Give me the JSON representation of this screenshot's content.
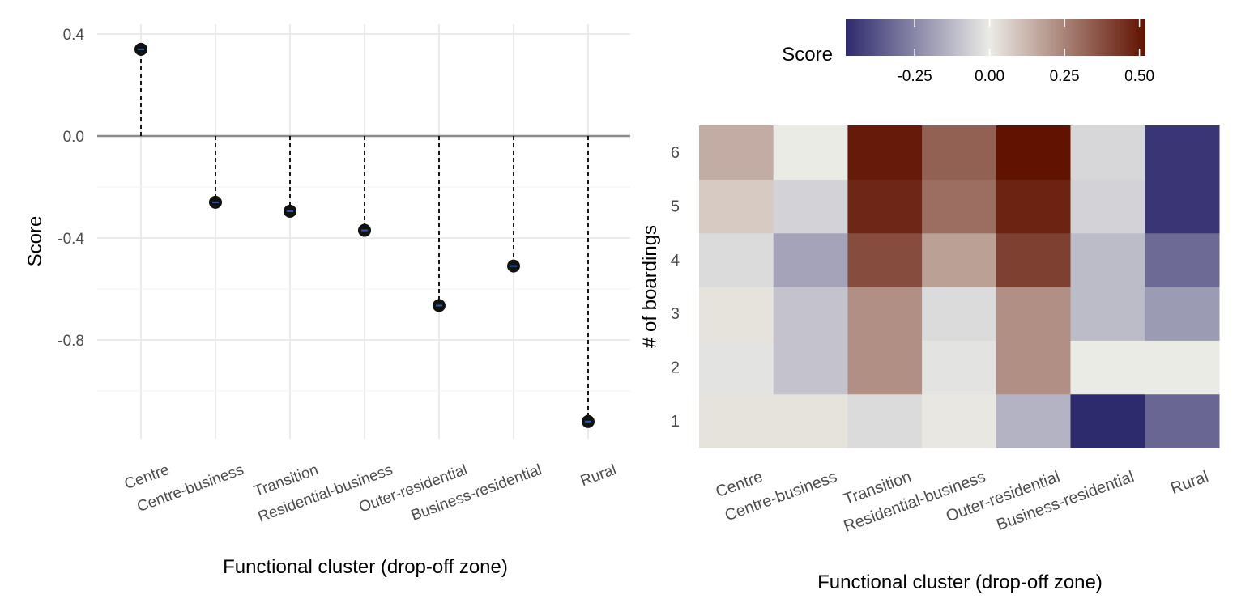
{
  "chart_data": [
    {
      "type": "lollipop",
      "categories": [
        "Centre",
        "Centre-business",
        "Transition",
        "Residential-business",
        "Outer-residential",
        "Business-residential",
        "Rural"
      ],
      "values": [
        0.34,
        -0.26,
        -0.295,
        -0.37,
        -0.665,
        -0.51,
        -1.12
      ],
      "xlabel": "Functional cluster (drop-off zone)",
      "ylabel": "Score",
      "ylim": [
        -1.2,
        0.44
      ],
      "yticks": [
        0.4,
        0.0,
        -0.4,
        -0.8
      ],
      "ytick_labels": [
        "0.4",
        "0.0",
        "-0.4",
        "-0.8"
      ],
      "grid": true,
      "reference_line": 0
    },
    {
      "type": "heatmap",
      "x_categories": [
        "Centre",
        "Centre-business",
        "Transition",
        "Residential-business",
        "Outer-residential",
        "Business-residential",
        "Rural"
      ],
      "y_categories": [
        "1",
        "2",
        "3",
        "4",
        "5",
        "6"
      ],
      "values": [
        [
          0.02,
          0.02,
          -0.04,
          0.01,
          -0.14,
          -0.48,
          -0.33
        ],
        [
          -0.02,
          -0.1,
          0.22,
          -0.02,
          0.22,
          0.0,
          0.0
        ],
        [
          0.02,
          -0.1,
          0.22,
          -0.04,
          0.22,
          -0.12,
          -0.2
        ],
        [
          -0.04,
          -0.18,
          0.38,
          0.18,
          0.41,
          -0.12,
          -0.32
        ],
        [
          0.08,
          -0.06,
          0.47,
          0.3,
          0.48,
          -0.06,
          -0.45
        ],
        [
          0.15,
          0.0,
          0.5,
          0.33,
          0.52,
          -0.05,
          -0.45
        ]
      ],
      "xlabel": "Functional cluster (drop-off zone)",
      "ylabel": "# of boardings",
      "legend": {
        "title": "Score",
        "ticks": [
          -0.25,
          0.0,
          0.25,
          0.5
        ],
        "tick_labels": [
          "-0.25",
          "0.00",
          "0.25",
          "0.50"
        ],
        "range": [
          -0.48,
          0.52
        ],
        "placement": "top"
      },
      "colors": {
        "low": "#2e2a6e",
        "mid": "#ebebe6",
        "high": "#611200"
      }
    }
  ]
}
